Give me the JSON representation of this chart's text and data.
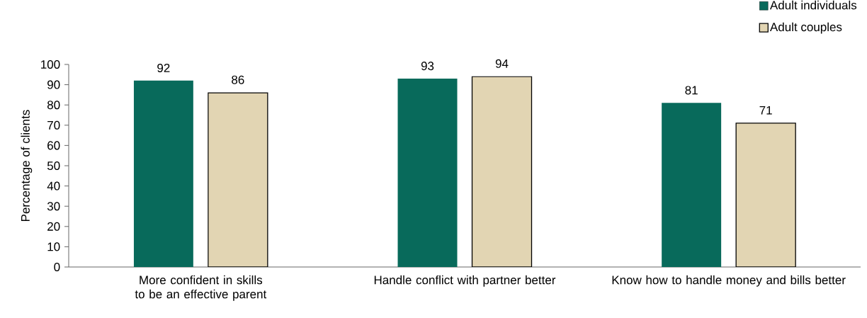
{
  "chart_data": {
    "type": "bar",
    "ylabel": "Percentage of clients",
    "categories": [
      "More confident in skills to be an effective parent",
      "Handle conflict with partner better",
      "Know how to handle money and bills better"
    ],
    "series": [
      {
        "name": "Adult individuals",
        "color": "#086a5b",
        "values": [
          92,
          93,
          81
        ]
      },
      {
        "name": "Adult couples",
        "color": "#e2d5b3",
        "values": [
          86,
          94,
          71
        ]
      }
    ],
    "ylim": [
      0,
      100
    ],
    "yticks": [
      0,
      10,
      20,
      30,
      40,
      50,
      60,
      70,
      80,
      90,
      100
    ],
    "data_labels": true,
    "legend": "top right",
    "grid": false
  }
}
